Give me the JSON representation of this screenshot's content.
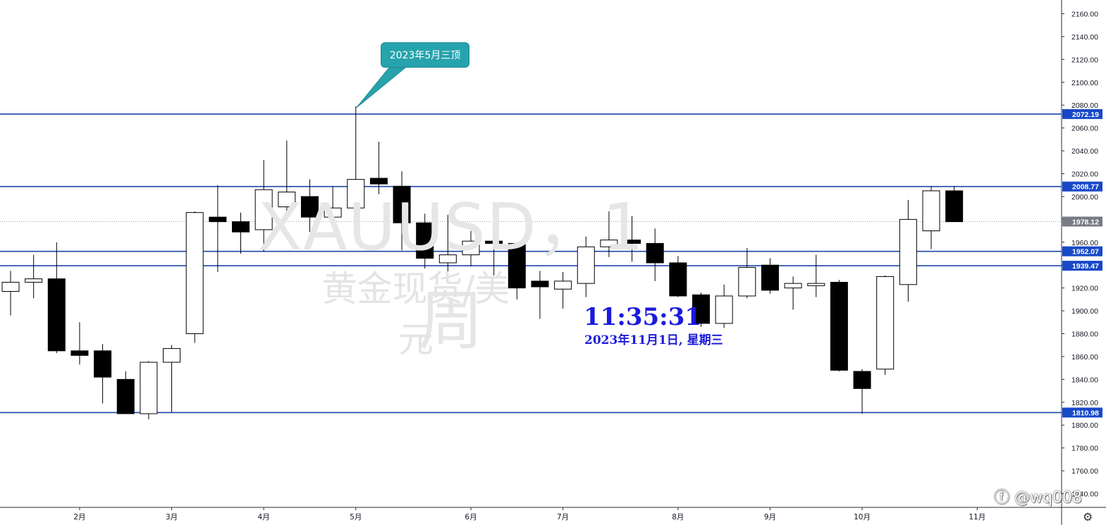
{
  "chart_data": {
    "type": "candlestick",
    "symbol_watermark": "XAUUSD，1周",
    "description_watermark": "黄金现货/美元",
    "ylim": [
      1728,
      2172
    ],
    "y_ticks": [
      1740,
      1760,
      1780,
      1800,
      1820,
      1840,
      1860,
      1880,
      1900,
      1920,
      1940,
      1960,
      1980,
      2000,
      2020,
      2040,
      2060,
      2080,
      2100,
      2120,
      2140,
      2160
    ],
    "x_tick_labels": [
      {
        "label": "2月",
        "index": 3
      },
      {
        "label": "3月",
        "index": 7
      },
      {
        "label": "4月",
        "index": 11
      },
      {
        "label": "5月",
        "index": 15
      },
      {
        "label": "6月",
        "index": 20
      },
      {
        "label": "7月",
        "index": 24
      },
      {
        "label": "8月",
        "index": 29
      },
      {
        "label": "9月",
        "index": 33
      },
      {
        "label": "10月",
        "index": 37
      },
      {
        "label": "11月",
        "index": 42
      }
    ],
    "candles": [
      {
        "o": 1917,
        "h": 1935,
        "l": 1896,
        "c": 1925
      },
      {
        "o": 1925,
        "h": 1949,
        "l": 1911,
        "c": 1928
      },
      {
        "o": 1928,
        "h": 1960,
        "l": 1863,
        "c": 1865
      },
      {
        "o": 1865,
        "h": 1890,
        "l": 1853,
        "c": 1861
      },
      {
        "o": 1865,
        "h": 1871,
        "l": 1819,
        "c": 1842
      },
      {
        "o": 1840,
        "h": 1847,
        "l": 1810,
        "c": 1810
      },
      {
        "o": 1810,
        "h": 1856,
        "l": 1805,
        "c": 1855
      },
      {
        "o": 1855,
        "h": 1870,
        "l": 1811,
        "c": 1867
      },
      {
        "o": 1880,
        "h": 1987,
        "l": 1872,
        "c": 1986
      },
      {
        "o": 1982,
        "h": 2010,
        "l": 1934,
        "c": 1978
      },
      {
        "o": 1978,
        "h": 1986,
        "l": 1950,
        "c": 1969
      },
      {
        "o": 1971,
        "h": 2032,
        "l": 1952,
        "c": 2006
      },
      {
        "o": 1991,
        "h": 2049,
        "l": 1981,
        "c": 2004
      },
      {
        "o": 2000,
        "h": 2015,
        "l": 1969,
        "c": 1982
      },
      {
        "o": 1982,
        "h": 2009,
        "l": 1977,
        "c": 1990
      },
      {
        "o": 1990,
        "h": 2079,
        "l": 1977,
        "c": 2015
      },
      {
        "o": 2016,
        "h": 2048,
        "l": 2002,
        "c": 2011
      },
      {
        "o": 2009,
        "h": 2022,
        "l": 1953,
        "c": 1977
      },
      {
        "o": 1977,
        "h": 1985,
        "l": 1937,
        "c": 1946
      },
      {
        "o": 1942,
        "h": 1984,
        "l": 1932,
        "c": 1949
      },
      {
        "o": 1949,
        "h": 1970,
        "l": 1939,
        "c": 1961
      },
      {
        "o": 1961,
        "h": 1967,
        "l": 1931,
        "c": 1959
      },
      {
        "o": 1959,
        "h": 1958,
        "l": 1910,
        "c": 1920
      },
      {
        "o": 1926,
        "h": 1935,
        "l": 1893,
        "c": 1921
      },
      {
        "o": 1919,
        "h": 1934,
        "l": 1902,
        "c": 1926
      },
      {
        "o": 1924,
        "h": 1965,
        "l": 1912,
        "c": 1956
      },
      {
        "o": 1956,
        "h": 1987,
        "l": 1947,
        "c": 1962
      },
      {
        "o": 1962,
        "h": 1983,
        "l": 1943,
        "c": 1959
      },
      {
        "o": 1959,
        "h": 1972,
        "l": 1926,
        "c": 1942
      },
      {
        "o": 1942,
        "h": 1948,
        "l": 1912,
        "c": 1913
      },
      {
        "o": 1914,
        "h": 1916,
        "l": 1886,
        "c": 1889
      },
      {
        "o": 1889,
        "h": 1923,
        "l": 1885,
        "c": 1913
      },
      {
        "o": 1913,
        "h": 1955,
        "l": 1911,
        "c": 1938
      },
      {
        "o": 1940,
        "h": 1946,
        "l": 1915,
        "c": 1918
      },
      {
        "o": 1920,
        "h": 1930,
        "l": 1901,
        "c": 1924
      },
      {
        "o": 1922,
        "h": 1949,
        "l": 1912,
        "c": 1924
      },
      {
        "o": 1925,
        "h": 1927,
        "l": 1847,
        "c": 1848
      },
      {
        "o": 1847,
        "h": 1849,
        "l": 1810,
        "c": 1832
      },
      {
        "o": 1849,
        "h": 1931,
        "l": 1844,
        "c": 1930
      },
      {
        "o": 1923,
        "h": 1997,
        "l": 1908,
        "c": 1980
      },
      {
        "o": 1970,
        "h": 2009,
        "l": 1954,
        "c": 2005
      },
      {
        "o": 2005,
        "h": 2009,
        "l": 1978,
        "c": 1978
      }
    ],
    "horizontal_lines": [
      2072.19,
      2008.77,
      1952.07,
      1939.47,
      1810.98
    ],
    "current_price": 1978.12,
    "annotation": {
      "text": "2023年5月三顶",
      "candle_index": 15,
      "price": 2079
    },
    "clock_time": "11:35:31",
    "clock_date": "2023年11月1日, 星期三",
    "colors": {
      "level_line": "#1e46a8",
      "level_label": "#1848c8",
      "price_label": "#787b86",
      "callout": "#26a3ad",
      "clock": "#1a1adc",
      "bull_body": "#ffffff",
      "bear_body": "#000000"
    }
  },
  "credit": "@wq008"
}
